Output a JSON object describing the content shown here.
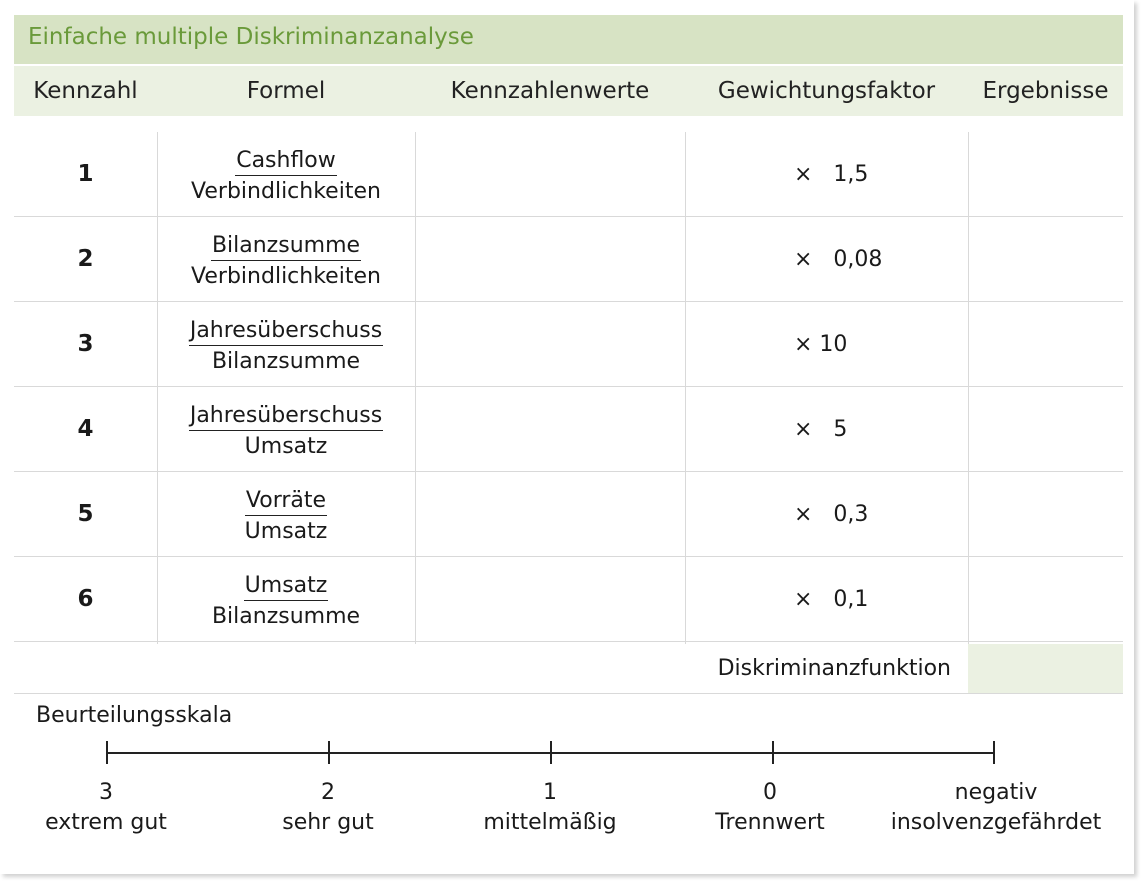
{
  "title": "Einfache multiple Diskriminanzanalyse",
  "headers": {
    "kennzahl": "Kennzahl",
    "formel": "Formel",
    "kennzahlenwerte": "Kennzahlenwerte",
    "gewichtungsfaktor": "Gewichtungsfaktor",
    "ergebnisse": "Ergebnisse"
  },
  "rows": [
    {
      "num": "1",
      "numerator": "Cashflow",
      "denominator": "Verbindlichkeiten",
      "weight": "×   1,5"
    },
    {
      "num": "2",
      "numerator": "Bilanzsumme",
      "denominator": "Verbindlichkeiten",
      "weight": "×   0,08"
    },
    {
      "num": "3",
      "numerator": "Jahresüberschuss",
      "denominator": "Bilanzsumme",
      "weight": "× 10"
    },
    {
      "num": "4",
      "numerator": "Jahresüberschuss",
      "denominator": "Umsatz",
      "weight": "×   5"
    },
    {
      "num": "5",
      "numerator": "Vorräte",
      "denominator": "Umsatz",
      "weight": "×   0,3"
    },
    {
      "num": "6",
      "numerator": "Umsatz",
      "denominator": "Bilanzsumme",
      "weight": "×   0,1"
    }
  ],
  "diskriminanzfunktion": "Diskriminanzfunktion",
  "scale": {
    "title": "Beurteilungsskala",
    "points": [
      {
        "value": "3",
        "label": "extrem gut"
      },
      {
        "value": "2",
        "label": "sehr gut"
      },
      {
        "value": "1",
        "label": "mittelmäßig"
      },
      {
        "value": "0",
        "label": "Trennwert"
      },
      {
        "value": "negativ",
        "label": "insolvenzgefährdet"
      }
    ]
  },
  "colors": {
    "title_bg": "#d7e3c4",
    "title_text": "#6a9a3a",
    "header_bg": "#ebf1e2",
    "grid": "#d9d9d9"
  }
}
